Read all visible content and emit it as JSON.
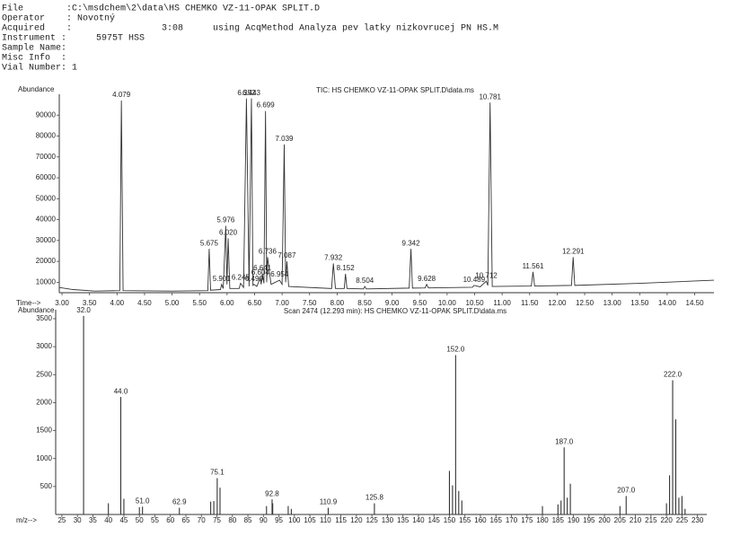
{
  "header": {
    "lines": [
      [
        "File",
        ":C:\\msdchem\\2\\data\\HS CHEMKO VZ-11-OPAK SPLIT.D"
      ],
      [
        "Operator",
        ": Novotný"
      ],
      [
        "Acquired",
        ":",
        "3:08",
        "using AcqMethod Analyza pev latky nizkovrucej PN HS.M"
      ],
      [
        "Instrument :",
        "5975T HSS"
      ],
      [
        "Sample Name:"
      ],
      [
        "Misc Info  :"
      ],
      [
        "Vial Number: 1"
      ]
    ]
  },
  "chart_data": [
    {
      "type": "line",
      "title": "TIC: HS CHEMKO VZ-11-OPAK SPLIT.D\\data.ms",
      "xlabel": "Time-->",
      "ylabel": "Abundance",
      "color": "#333333",
      "x": [
        2.95,
        3.2,
        3.6,
        4.05,
        4.079,
        4.11,
        5.0,
        5.65,
        5.675,
        5.7,
        5.88,
        5.901,
        5.93,
        5.976,
        5.998,
        6.02,
        6.05,
        6.22,
        6.245,
        6.3,
        6.352,
        6.4,
        6.443,
        6.47,
        6.49,
        6.54,
        6.604,
        6.62,
        6.641,
        6.67,
        6.699,
        6.72,
        6.736,
        6.8,
        6.954,
        7.0,
        7.039,
        7.065,
        7.087,
        7.12,
        7.9,
        7.932,
        7.97,
        8.13,
        8.152,
        8.18,
        8.48,
        8.504,
        8.53,
        9.31,
        9.342,
        9.37,
        9.6,
        9.628,
        9.66,
        10.46,
        10.489,
        10.6,
        10.712,
        10.74,
        10.781,
        10.82,
        11.53,
        11.561,
        11.59,
        12.26,
        12.291,
        12.32,
        13.5,
        14.85
      ],
      "values": [
        7500,
        6500,
        5800,
        6000,
        97000,
        6000,
        5800,
        6000,
        26000,
        6200,
        6500,
        9000,
        7000,
        37000,
        9000,
        31000,
        7000,
        7000,
        9500,
        7500,
        98000,
        8000,
        98000,
        8500,
        9000,
        8000,
        12000,
        9000,
        14000,
        9500,
        92000,
        10000,
        22000,
        9000,
        11000,
        9000,
        76000,
        10000,
        20000,
        8000,
        7000,
        19000,
        7000,
        7000,
        14000,
        7000,
        6800,
        8000,
        6800,
        7200,
        26000,
        7200,
        7300,
        9000,
        7300,
        7600,
        8500,
        7800,
        10500,
        8500,
        96000,
        8000,
        8200,
        15000,
        8200,
        8500,
        22000,
        8500,
        9500,
        11000
      ],
      "labels": [
        null,
        null,
        null,
        null,
        "4.079",
        null,
        null,
        null,
        "5.675",
        null,
        null,
        "5.901",
        null,
        "5.976",
        null,
        "6.020",
        null,
        null,
        "6.245",
        null,
        "6.352",
        null,
        "6.443",
        null,
        "6.490",
        null,
        "6.604",
        null,
        "6.641",
        null,
        "6.699",
        null,
        "6.736",
        null,
        "6.954",
        null,
        "7.039",
        null,
        "7.087",
        null,
        null,
        "7.932",
        null,
        null,
        "8.152",
        null,
        null,
        "8.504",
        null,
        null,
        "9.342",
        null,
        null,
        "9.628",
        null,
        null,
        "10.489",
        null,
        "10.712",
        null,
        "10.781",
        null,
        null,
        "11.561",
        null,
        null,
        "12.291",
        null,
        null,
        null
      ],
      "xlim": [
        2.95,
        14.85
      ],
      "ylim": [
        5000,
        100000
      ],
      "xticks": [
        {
          "value": 3.0,
          "label": "3.00"
        },
        {
          "value": 3.5,
          "label": "3.50"
        },
        {
          "value": 4.0,
          "label": "4.00"
        },
        {
          "value": 4.5,
          "label": "4.50"
        },
        {
          "value": 5.0,
          "label": "5.00"
        },
        {
          "value": 5.5,
          "label": "5.50"
        },
        {
          "value": 6.0,
          "label": "6.00"
        },
        {
          "value": 6.5,
          "label": "6.50"
        },
        {
          "value": 7.0,
          "label": "7.00"
        },
        {
          "value": 7.5,
          "label": "7.50"
        },
        {
          "value": 8.0,
          "label": "8.00"
        },
        {
          "value": 8.5,
          "label": "8.50"
        },
        {
          "value": 9.0,
          "label": "9.00"
        },
        {
          "value": 9.5,
          "label": "9.50"
        },
        {
          "value": 10.0,
          "label": "10.00"
        },
        {
          "value": 10.5,
          "label": "10.50"
        },
        {
          "value": 11.0,
          "label": "11.00"
        },
        {
          "value": 11.5,
          "label": "11.50"
        },
        {
          "value": 12.0,
          "label": "12.00"
        },
        {
          "value": 12.5,
          "label": "12.50"
        },
        {
          "value": 13.0,
          "label": "13.00"
        },
        {
          "value": 13.5,
          "label": "13.50"
        },
        {
          "value": 14.0,
          "label": "14.00"
        },
        {
          "value": 14.5,
          "label": "14.50"
        }
      ],
      "yticks": [
        10000,
        20000,
        30000,
        40000,
        50000,
        60000,
        70000,
        80000,
        90000
      ]
    },
    {
      "type": "bar",
      "title": "Scan 2474 (12.293 min): HS CHEMKO VZ-11-OPAK SPLIT.D\\data.ms",
      "xlabel": "m/z-->",
      "ylabel": "Abundance",
      "color": "#333333",
      "x": [
        32.0,
        40,
        44.0,
        45,
        50,
        51.0,
        62.9,
        73,
        74,
        75.1,
        76,
        91,
        92.8,
        93,
        98,
        99,
        110.9,
        125.8,
        150,
        151,
        152.0,
        153,
        154,
        180,
        185,
        186,
        187.0,
        188,
        189,
        205,
        207.0,
        220,
        221,
        222.0,
        223,
        224,
        225,
        226
      ],
      "values": [
        3550,
        200,
        2100,
        280,
        130,
        140,
        120,
        230,
        240,
        650,
        480,
        150,
        270,
        200,
        150,
        100,
        120,
        200,
        780,
        520,
        2850,
        420,
        250,
        150,
        180,
        250,
        1200,
        300,
        550,
        150,
        330,
        200,
        700,
        2400,
        1700,
        300,
        330,
        100
      ],
      "labels": [
        "32.0",
        null,
        "44.0",
        null,
        null,
        "51.0",
        "62.9",
        null,
        null,
        "75.1",
        null,
        null,
        "92.8",
        null,
        null,
        null,
        "110.9",
        "125.8",
        null,
        null,
        "152.0",
        null,
        null,
        null,
        null,
        null,
        "187.0",
        null,
        null,
        null,
        "207.0",
        null,
        null,
        "222.0",
        null,
        null,
        null,
        null
      ],
      "xlim": [
        23,
        233
      ],
      "ylim": [
        0,
        3660
      ],
      "xticks": [
        25,
        30,
        35,
        40,
        45,
        50,
        55,
        60,
        65,
        70,
        75,
        80,
        85,
        90,
        95,
        100,
        105,
        110,
        115,
        120,
        125,
        130,
        135,
        140,
        145,
        150,
        155,
        160,
        165,
        170,
        175,
        180,
        185,
        190,
        195,
        200,
        205,
        210,
        215,
        220,
        225,
        230
      ],
      "yticks": [
        500,
        1000,
        1500,
        2000,
        2500,
        3000,
        3500
      ]
    }
  ]
}
